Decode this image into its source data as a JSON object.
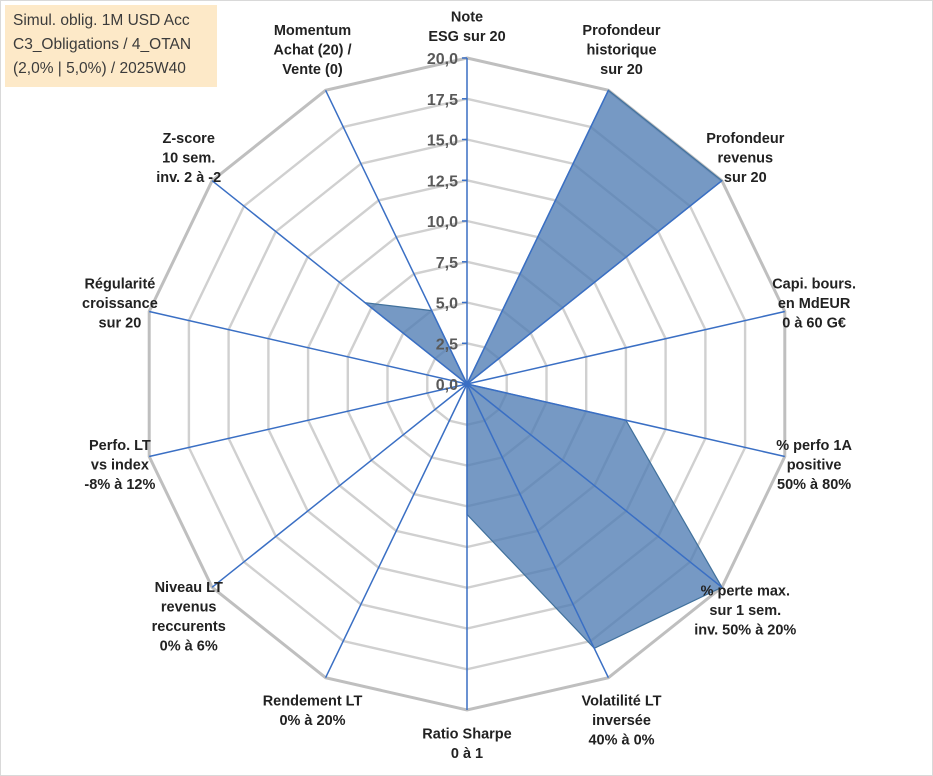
{
  "legend_box": {
    "line1": "Simul. oblig. 1M USD Acc",
    "line2": "C3_Obligations / 4_OTAN",
    "line3": "(2,0% | 5,0%) / 2025W40"
  },
  "chart_data": {
    "type": "radar",
    "r_range": [
      0,
      20
    ],
    "ticks": [
      "0,0",
      "2,5",
      "5,0",
      "7,5",
      "10,0",
      "12,5",
      "15,0",
      "17,5",
      "20,0"
    ],
    "grid": true,
    "series_color": "#4f7cb3",
    "axes": [
      {
        "label": [
          "Note",
          "ESG sur 20"
        ],
        "value": 0
      },
      {
        "label": [
          "Profondeur",
          "historique",
          "sur 20"
        ],
        "value": 20
      },
      {
        "label": [
          "Profondeur",
          "revenus",
          "sur 20"
        ],
        "value": 20
      },
      {
        "label": [
          "Capi. bours.",
          "en MdEUR",
          "0 à 60 G€"
        ],
        "value": 0
      },
      {
        "label": [
          "% perfo 1A",
          "positive",
          "50% à 80%"
        ],
        "value": 10
      },
      {
        "label": [
          "% perte max.",
          "sur 1 sem.",
          "inv. 50% à 20%"
        ],
        "value": 20
      },
      {
        "label": [
          "Volatilité LT",
          "inversée",
          "40% à 0%"
        ],
        "value": 18
      },
      {
        "label": [
          "Ratio Sharpe",
          "0 à 1"
        ],
        "value": 8
      },
      {
        "label": [
          "Rendement LT",
          "0% à 20%"
        ],
        "value": 0
      },
      {
        "label": [
          "Niveau LT",
          "revenus",
          "reccurents",
          "0% à 6%"
        ],
        "value": 0
      },
      {
        "label": [
          "Perfo. LT",
          "vs index",
          "-8% à 12%"
        ],
        "value": 0
      },
      {
        "label": [
          "Régularité",
          "croissance",
          "sur 20"
        ],
        "value": 0
      },
      {
        "label": [
          "Z-score",
          "10 sem.",
          "inv. 2 à -2"
        ],
        "value": 8
      },
      {
        "label": [
          "Momentum",
          "Achat (20) /",
          "Vente (0)"
        ],
        "value": 5
      }
    ]
  }
}
